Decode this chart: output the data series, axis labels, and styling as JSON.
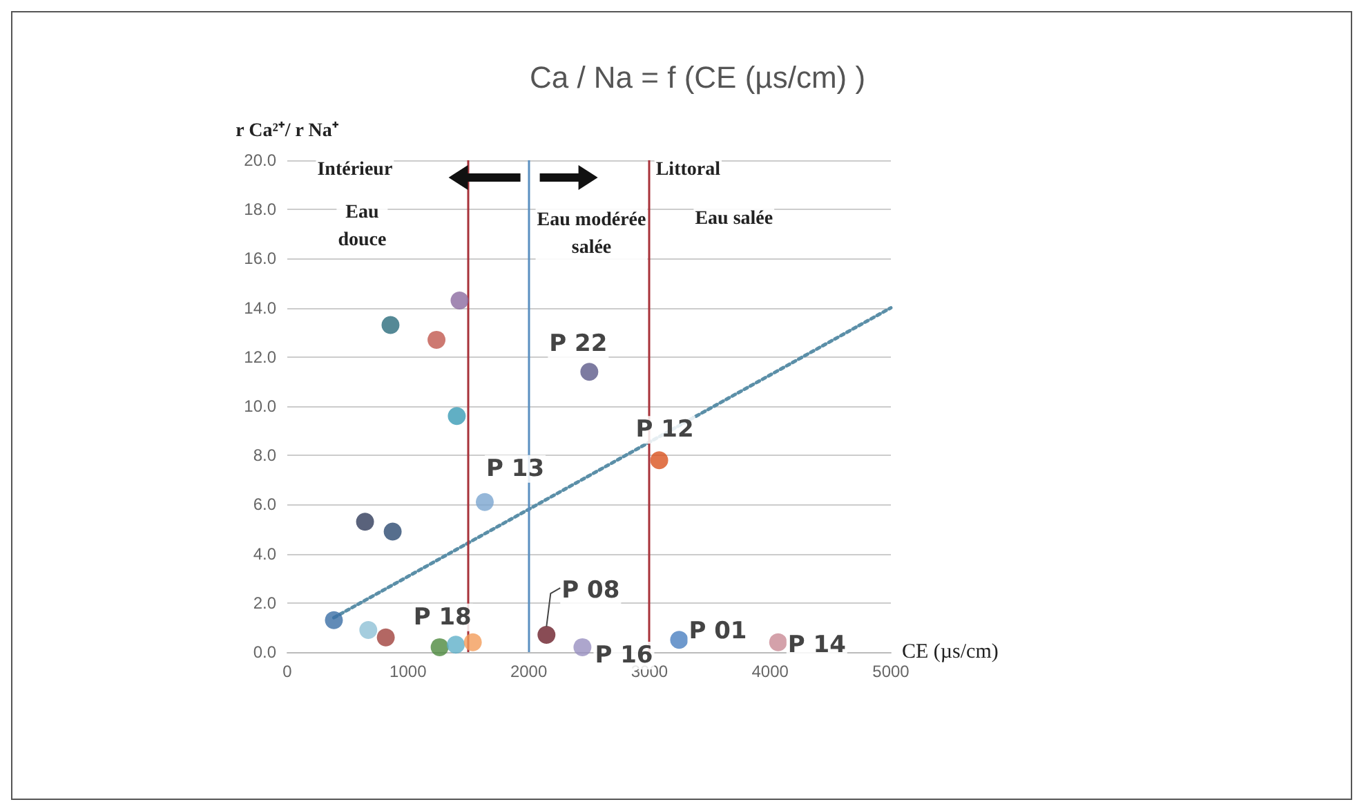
{
  "chart_data": {
    "type": "scatter",
    "title": "Ca / Na = f (CE (µs/cm) )",
    "xlabel": "CE (µs/cm)",
    "ylabel": "r Ca²⁺/ r Na⁺",
    "xlim": [
      0,
      5000
    ],
    "xticks": [
      0,
      1000,
      2000,
      3000,
      4000,
      5000
    ],
    "ylim": [
      0,
      20
    ],
    "yticks": [
      {
        "value": 0,
        "label": "0.0"
      },
      {
        "value": 2,
        "label": "2.0"
      },
      {
        "value": 4,
        "label": "4.0"
      },
      {
        "value": 6,
        "label": "6.0"
      },
      {
        "value": 8,
        "label": "8.0"
      },
      {
        "value": 10,
        "label": "10.0"
      },
      {
        "value": 12,
        "label": "12.0"
      },
      {
        "value": 14,
        "label": "14.0"
      },
      {
        "value": 16,
        "label": "16.0"
      },
      {
        "value": 18,
        "label": "18.0"
      },
      {
        "value": 20,
        "label": "20.0"
      }
    ],
    "grid": "y",
    "marker": "circle",
    "series": [
      {
        "x": [
          386,
          671,
          816,
          1262,
          1396,
          1537,
          644,
          873,
          855,
          1236,
          1427,
          1404,
          1636,
          2502,
          2147,
          2445,
          3081,
          3246,
          4066
        ],
        "values": [
          1.3,
          0.9,
          0.6,
          0.2,
          0.3,
          0.4,
          5.3,
          4.9,
          13.3,
          12.7,
          14.3,
          9.6,
          6.1,
          11.4,
          0.7,
          0.2,
          7.8,
          0.5,
          0.4
        ],
        "colors": [
          "#3a6ea5",
          "#8ec1d6",
          "#a0413c",
          "#4e8a3e",
          "#5fb0c9",
          "#f39c5a",
          "#2f3b5a",
          "#2c4a70",
          "#2b6c7c",
          "#c0574d",
          "#8b6aa0",
          "#3a9bb5",
          "#7aa5cf",
          "#5c5a8a",
          "#6b1f2a",
          "#9890c0",
          "#d9531e",
          "#4a7fc1",
          "#c98a95"
        ]
      },
      {
        "type": "line",
        "x": [
          386,
          5000
        ],
        "values": [
          1.4,
          14.0
        ],
        "color": "#5b8fa8",
        "line_style": "dotted",
        "marker": "none"
      }
    ],
    "ref_lines": [
      {
        "axis": "x",
        "value": 1500,
        "color": "#a8323a"
      },
      {
        "axis": "x",
        "value": 2000,
        "color": "#5a8fc0"
      },
      {
        "axis": "x",
        "value": 3000,
        "color": "#a8323a"
      }
    ],
    "annotations": [
      {
        "text": "P 22",
        "x": 2502,
        "y": 11.4
      },
      {
        "text": "P 12",
        "x": 3081,
        "y": 7.8
      },
      {
        "text": "P 13",
        "x": 1636,
        "y": 6.1
      },
      {
        "text": "P 18",
        "x": 1537,
        "y": 0.4
      },
      {
        "text": "P 08",
        "x": 2147,
        "y": 0.7
      },
      {
        "text": "P 16",
        "x": 2445,
        "y": 0.2
      },
      {
        "text": "P 01",
        "x": 3246,
        "y": 0.5
      },
      {
        "text": "P 14",
        "x": 4066,
        "y": 0.4
      },
      "Intérieur",
      "Littoral",
      "Eau\ndouce",
      "Eau modérée\nsalée",
      "Eau salée"
    ]
  }
}
